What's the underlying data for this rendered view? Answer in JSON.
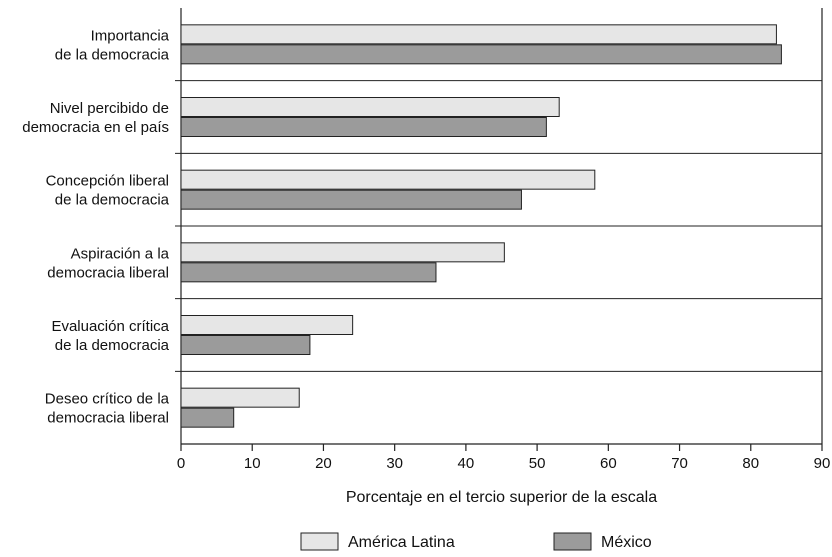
{
  "chart_data": {
    "type": "bar",
    "orientation": "horizontal",
    "categories": [
      [
        "Importancia",
        "de la democracia"
      ],
      [
        "Nivel percibido de",
        "democracia en el país"
      ],
      [
        "Concepción liberal",
        "de la democracia"
      ],
      [
        "Aspiración a la",
        "democracia liberal"
      ],
      [
        "Evaluación crítica",
        "de la democracia"
      ],
      [
        "Deseo crítico de la",
        "democracia liberal"
      ]
    ],
    "series": [
      {
        "name": "América Latina",
        "color": "#e6e6e6",
        "values": [
          83.6,
          53.1,
          58.1,
          45.4,
          24.1,
          16.6
        ]
      },
      {
        "name": "México",
        "color": "#9b9b9b",
        "values": [
          84.3,
          51.3,
          47.8,
          35.8,
          18.1,
          7.4
        ]
      }
    ],
    "xlabel": "Porcentaje en el tercio superior de la escala",
    "xlim": [
      0,
      90
    ],
    "xticks": [
      0,
      10,
      20,
      30,
      40,
      50,
      60,
      70,
      80,
      90
    ],
    "grid": false,
    "legend_position": "bottom-center"
  }
}
